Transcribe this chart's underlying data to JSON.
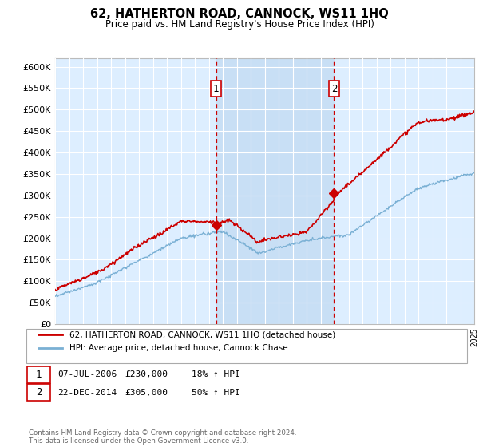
{
  "title": "62, HATHERTON ROAD, CANNOCK, WS11 1HQ",
  "subtitle": "Price paid vs. HM Land Registry's House Price Index (HPI)",
  "ylim": [
    0,
    620000
  ],
  "yticks": [
    0,
    50000,
    100000,
    150000,
    200000,
    250000,
    300000,
    350000,
    400000,
    450000,
    500000,
    550000,
    600000
  ],
  "ytick_labels": [
    "£0",
    "£50K",
    "£100K",
    "£150K",
    "£200K",
    "£250K",
    "£300K",
    "£350K",
    "£400K",
    "£450K",
    "£500K",
    "£550K",
    "£600K"
  ],
  "background_color": "#ffffff",
  "plot_bg_color": "#ddeeff",
  "shade_color": "#c8dff5",
  "grid_color": "#ffffff",
  "hpi_line_color": "#7ab0d4",
  "price_line_color": "#cc0000",
  "sale1_year": 2006.52,
  "sale1_price": 230000,
  "sale2_year": 2014.97,
  "sale2_price": 305000,
  "legend_line1": "62, HATHERTON ROAD, CANNOCK, WS11 1HQ (detached house)",
  "legend_line2": "HPI: Average price, detached house, Cannock Chase",
  "annotation1_date": "07-JUL-2006",
  "annotation1_price": "£230,000",
  "annotation1_hpi": "18% ↑ HPI",
  "annotation2_date": "22-DEC-2014",
  "annotation2_price": "£305,000",
  "annotation2_hpi": "50% ↑ HPI",
  "footer": "Contains HM Land Registry data © Crown copyright and database right 2024.\nThis data is licensed under the Open Government Licence v3.0."
}
